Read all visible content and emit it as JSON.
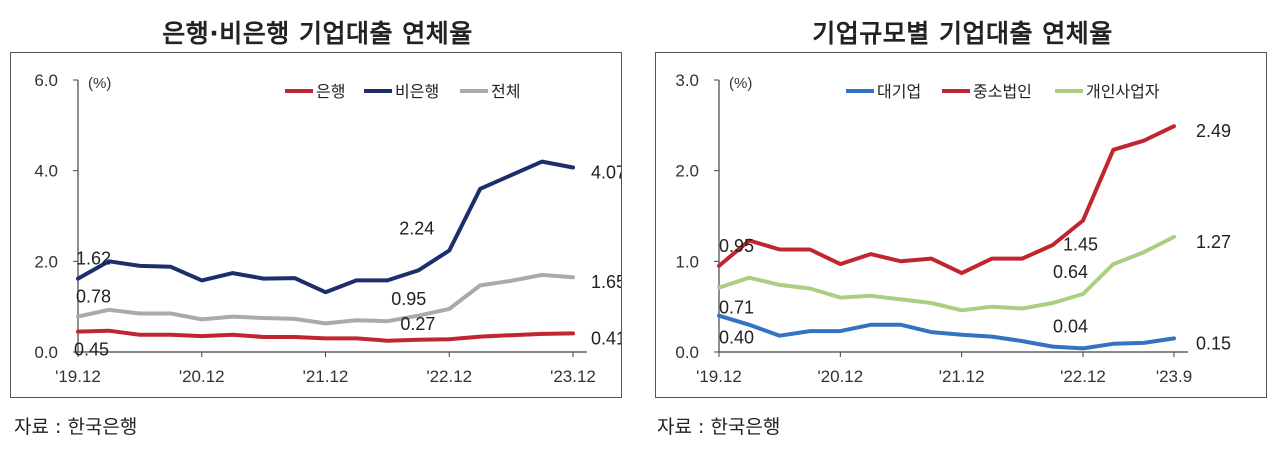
{
  "chart_data": [
    {
      "type": "line",
      "title": "은행·비은행 기업대출 연체율",
      "unit": "(%)",
      "source": "자료 : 한국은행",
      "ylim": [
        0,
        6
      ],
      "yticks": [
        "0.0",
        "2.0",
        "4.0",
        "6.0"
      ],
      "ytick_values": [
        0,
        2,
        4,
        6
      ],
      "n_points": 17,
      "xticks": [
        {
          "index": 0,
          "label": "'19.12"
        },
        {
          "index": 4,
          "label": "'20.12"
        },
        {
          "index": 8,
          "label": "'21.12"
        },
        {
          "index": 12,
          "label": "'22.12"
        },
        {
          "index": 16,
          "label": "'23.12"
        }
      ],
      "legend_position": "top-right",
      "grid": false,
      "series": [
        {
          "name": "은행",
          "color": "#c0262d",
          "values": [
            0.45,
            0.47,
            0.38,
            0.38,
            0.35,
            0.38,
            0.33,
            0.33,
            0.3,
            0.3,
            0.25,
            0.27,
            0.28,
            0.34,
            0.37,
            0.4,
            0.41
          ]
        },
        {
          "name": "비은행",
          "color": "#1c2f6a",
          "values": [
            1.62,
            2.0,
            1.9,
            1.88,
            1.58,
            1.74,
            1.62,
            1.63,
            1.32,
            1.58,
            1.58,
            1.8,
            2.24,
            3.6,
            3.9,
            4.2,
            4.07
          ]
        },
        {
          "name": "전체",
          "color": "#aaaaaa",
          "values": [
            0.78,
            0.93,
            0.85,
            0.85,
            0.72,
            0.78,
            0.75,
            0.73,
            0.63,
            0.7,
            0.68,
            0.8,
            0.95,
            1.47,
            1.57,
            1.7,
            1.65
          ]
        }
      ],
      "annotations": [
        {
          "text": "1.62",
          "series": 1,
          "index": 0,
          "dx": -2,
          "dy": -20
        },
        {
          "text": "0.78",
          "series": 2,
          "index": 0,
          "dx": -2,
          "dy": -20
        },
        {
          "text": "0.45",
          "series": 0,
          "index": 0,
          "dx": -4,
          "dy": 18
        },
        {
          "text": "2.24",
          "series": 1,
          "index": 12,
          "dx": -50,
          "dy": -22
        },
        {
          "text": "0.95",
          "series": 2,
          "index": 12,
          "dx": -58,
          "dy": -10
        },
        {
          "text": "0.27",
          "series": 0,
          "index": 11,
          "dx": -18,
          "dy": -16
        },
        {
          "text": "4.07",
          "series": 1,
          "index": 16,
          "dx": 18,
          "dy": 5
        },
        {
          "text": "1.65",
          "series": 2,
          "index": 16,
          "dx": 18,
          "dy": 5
        },
        {
          "text": "0.41",
          "series": 0,
          "index": 16,
          "dx": 18,
          "dy": 5
        }
      ]
    },
    {
      "type": "line",
      "title": "기업규모별 기업대출 연체율",
      "unit": "(%)",
      "source": "자료 : 한국은행",
      "ylim": [
        0,
        3
      ],
      "yticks": [
        "0.0",
        "1.0",
        "2.0",
        "3.0"
      ],
      "ytick_values": [
        0,
        1,
        2,
        3
      ],
      "n_points": 16,
      "xticks": [
        {
          "index": 0,
          "label": "'19.12"
        },
        {
          "index": 4,
          "label": "'20.12"
        },
        {
          "index": 8,
          "label": "'21.12"
        },
        {
          "index": 12,
          "label": "'22.12"
        },
        {
          "index": 15,
          "label": "'23.9"
        }
      ],
      "legend_position": "top-right",
      "grid": false,
      "series": [
        {
          "name": "대기업",
          "color": "#3373c4",
          "values": [
            0.4,
            0.3,
            0.18,
            0.23,
            0.23,
            0.3,
            0.3,
            0.22,
            0.19,
            0.17,
            0.12,
            0.06,
            0.04,
            0.09,
            0.1,
            0.15
          ]
        },
        {
          "name": "중소법인",
          "color": "#c0262d",
          "values": [
            0.95,
            1.23,
            1.13,
            1.13,
            0.97,
            1.08,
            1.0,
            1.03,
            0.87,
            1.03,
            1.03,
            1.18,
            1.45,
            2.23,
            2.33,
            2.49
          ]
        },
        {
          "name": "개인사업자",
          "color": "#a9cf82",
          "values": [
            0.71,
            0.82,
            0.74,
            0.7,
            0.6,
            0.62,
            0.58,
            0.54,
            0.46,
            0.5,
            0.48,
            0.54,
            0.64,
            0.97,
            1.1,
            1.27
          ]
        }
      ],
      "annotations": [
        {
          "text": "0.95",
          "series": 1,
          "index": 0,
          "dx": 0,
          "dy": -20
        },
        {
          "text": "0.71",
          "series": 2,
          "index": 0,
          "dx": 0,
          "dy": 20
        },
        {
          "text": "0.40",
          "series": 0,
          "index": 0,
          "dx": 0,
          "dy": 22
        },
        {
          "text": "1.45",
          "series": 1,
          "index": 12,
          "dx": -20,
          "dy": 24
        },
        {
          "text": "0.64",
          "series": 2,
          "index": 12,
          "dx": -30,
          "dy": -22
        },
        {
          "text": "0.04",
          "series": 0,
          "index": 12,
          "dx": -30,
          "dy": -22
        },
        {
          "text": "2.49",
          "series": 1,
          "index": 15,
          "dx": 22,
          "dy": 5
        },
        {
          "text": "1.27",
          "series": 2,
          "index": 15,
          "dx": 22,
          "dy": 5
        },
        {
          "text": "0.15",
          "series": 0,
          "index": 15,
          "dx": 22,
          "dy": 5
        }
      ]
    }
  ]
}
